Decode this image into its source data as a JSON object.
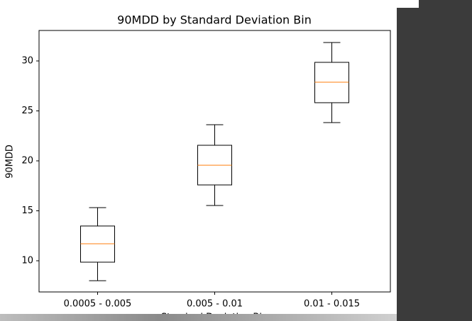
{
  "chart_data": {
    "type": "box",
    "title": "90MDD by Standard Deviation Bin",
    "xlabel": "Standard Deviation Bin",
    "ylabel": "90MDD",
    "categories": [
      "0.0005 - 0.005",
      "0.005 - 0.01",
      "0.01 - 0.015"
    ],
    "boxes": [
      {
        "low": 8.01,
        "q1": 9.86,
        "median": 11.7,
        "q3": 13.48,
        "high": 15.32
      },
      {
        "low": 15.53,
        "q1": 17.59,
        "median": 19.57,
        "q3": 21.56,
        "high": 23.62
      },
      {
        "low": 23.83,
        "q1": 25.82,
        "median": 27.87,
        "q3": 29.86,
        "high": 31.84
      }
    ],
    "color": "#000000",
    "median_color": "#ff7f0e",
    "ylim": [
      6.88,
      33.05
    ],
    "yticks": [
      10,
      15,
      20,
      25,
      30
    ],
    "grid": false
  }
}
